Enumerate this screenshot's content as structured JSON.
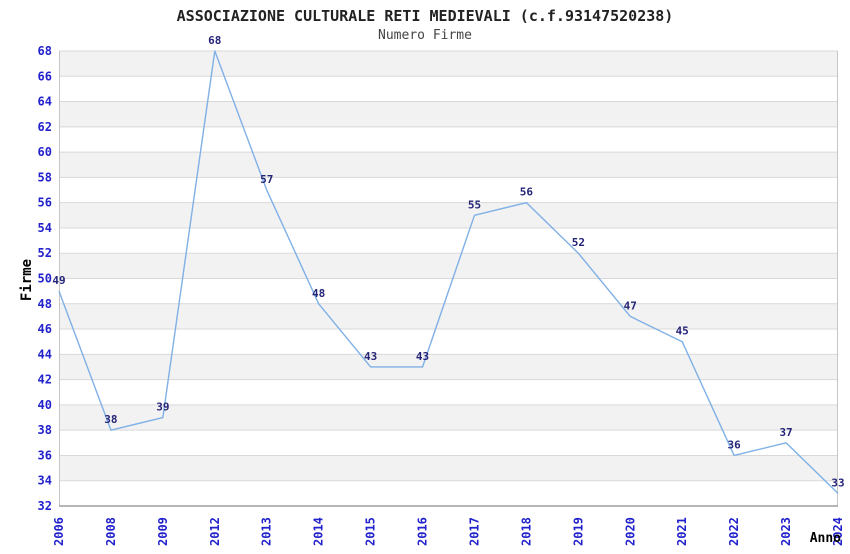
{
  "chart_data": {
    "type": "line",
    "title": "ASSOCIAZIONE CULTURALE RETI MEDIEVALI (c.f.93147520238)",
    "subtitle": "Numero Firme",
    "xlabel": "Anno",
    "ylabel": "Firme",
    "categories": [
      "2006",
      "2008",
      "2009",
      "2012",
      "2013",
      "2014",
      "2015",
      "2016",
      "2017",
      "2018",
      "2019",
      "2020",
      "2021",
      "2022",
      "2023",
      "2024"
    ],
    "values": [
      49,
      38,
      39,
      68,
      57,
      48,
      43,
      43,
      55,
      56,
      52,
      47,
      45,
      36,
      37,
      33
    ],
    "ylim": [
      32,
      68
    ],
    "ytick_step": 2,
    "grid": true,
    "legend": "none",
    "colors": {
      "line": "#7fb0e6",
      "point_label": "#252578",
      "tick_label": "#2222cc",
      "band": "#f2f2f2",
      "gridline": "#d9d9d9",
      "side_border": "#c6c6c6",
      "bottom_border": "#9e9e9e",
      "title": "#222222",
      "subtitle": "#444444",
      "axis_title": "#000000",
      "background": "#ffffff"
    }
  }
}
